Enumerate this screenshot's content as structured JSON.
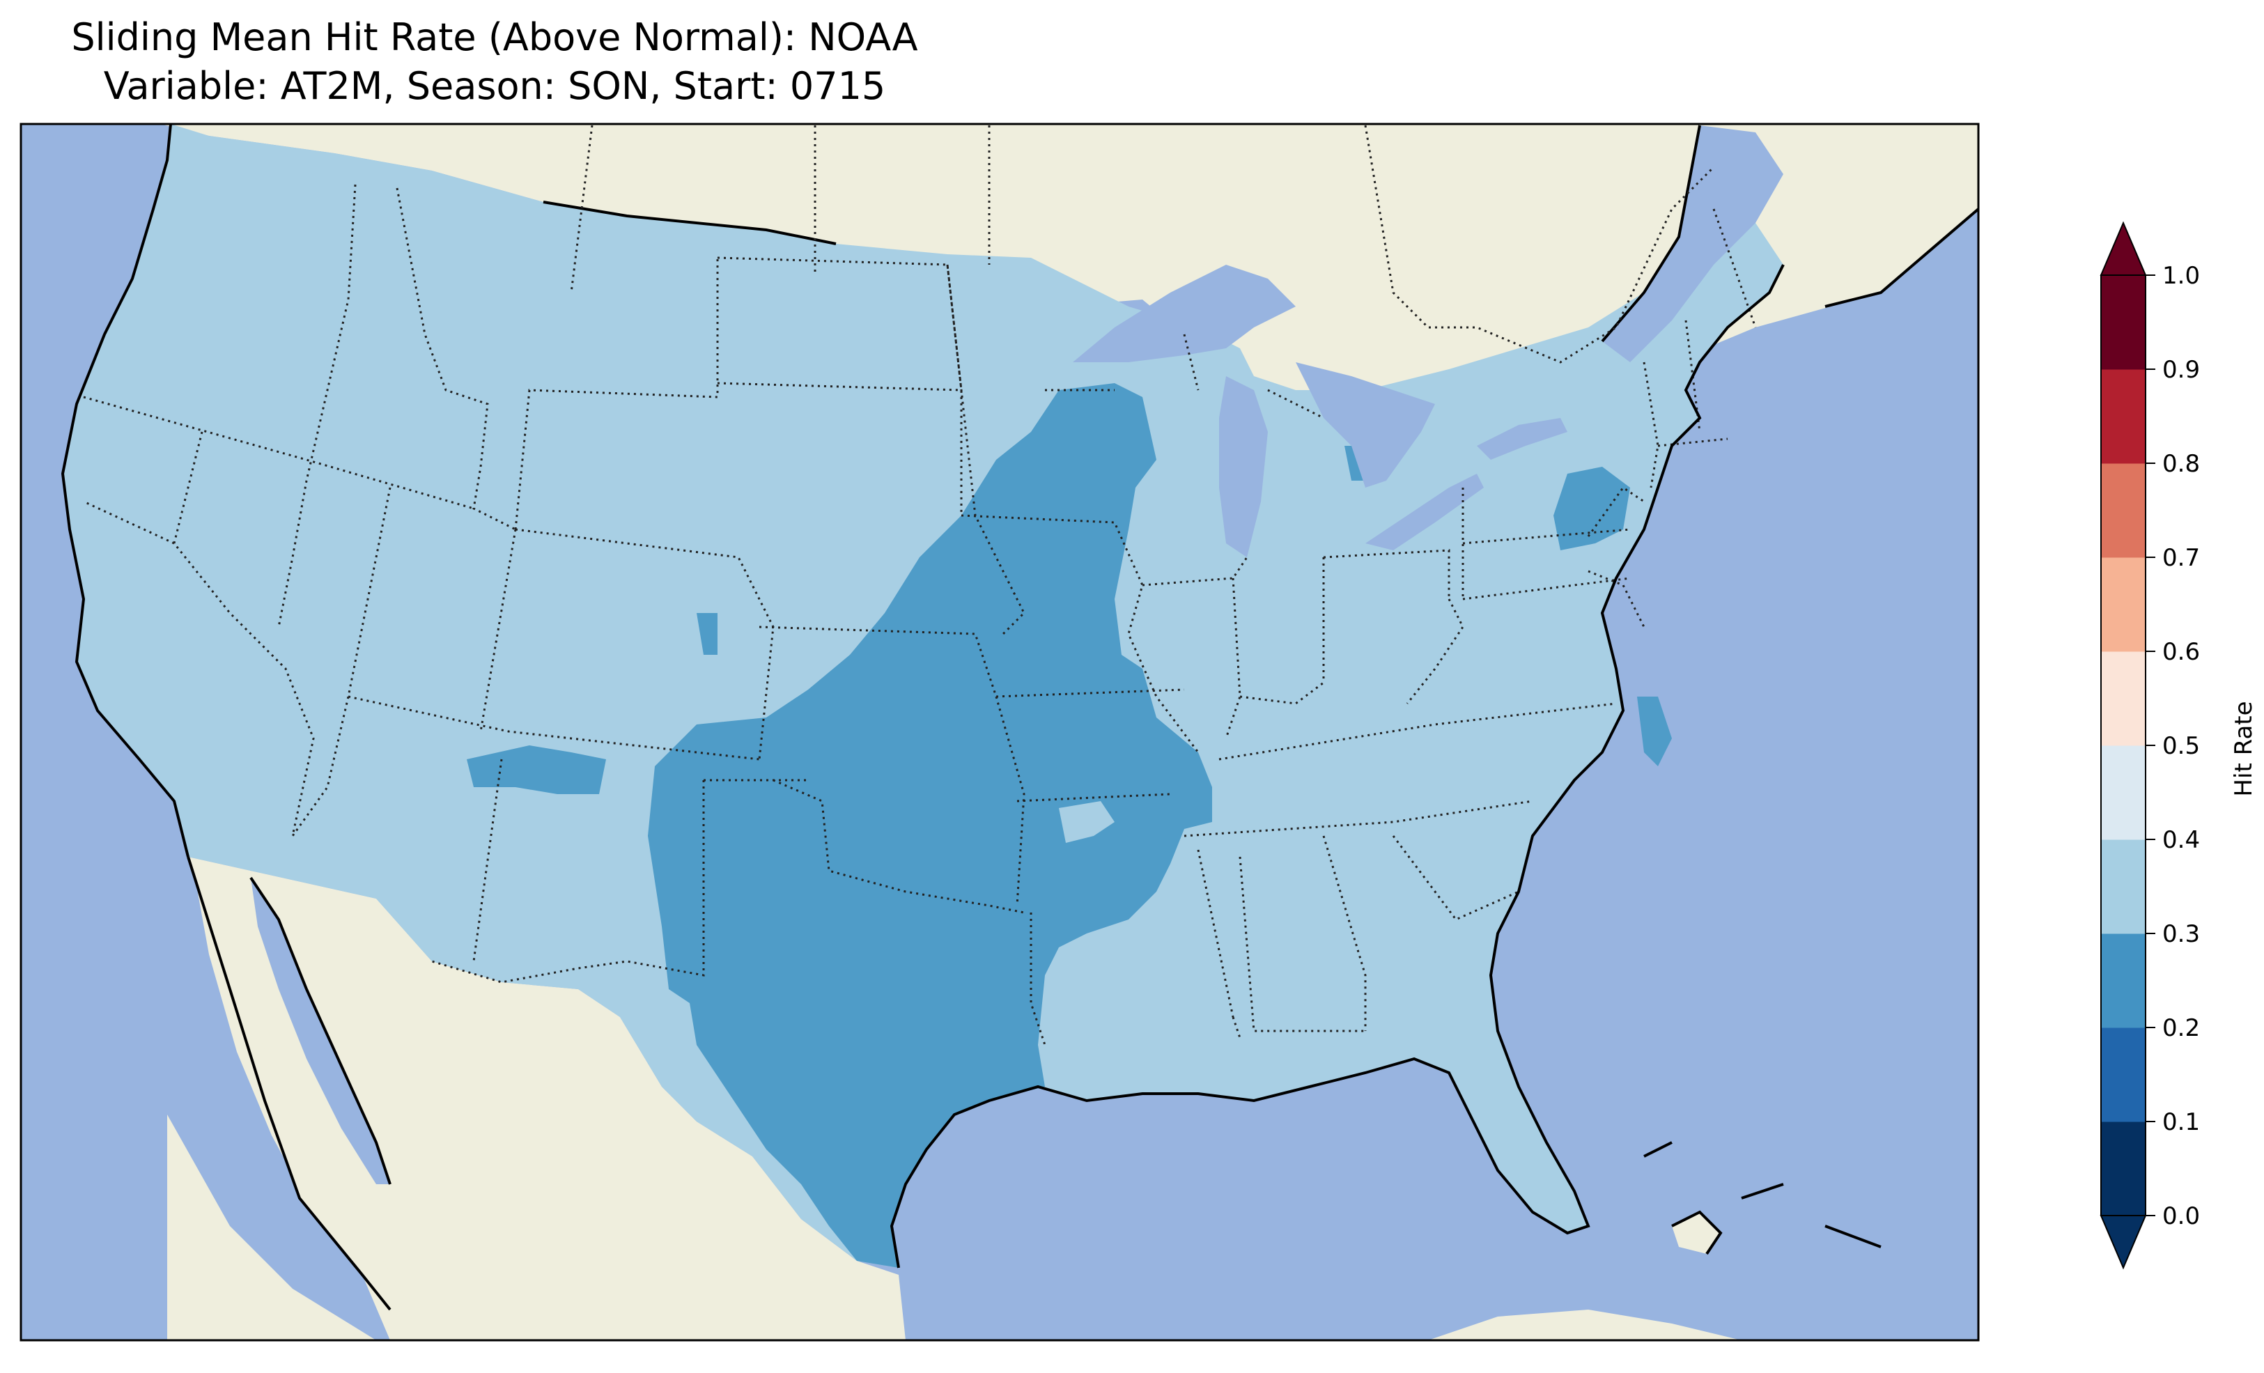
{
  "title": {
    "line1": "Sliding Mean Hit Rate (Above Normal): NOAA",
    "line2": "Variable: AT2M, Season: SON, Start: 0715"
  },
  "colorbar": {
    "label": "Hit Rate",
    "ticks": [
      "0.0",
      "0.1",
      "0.2",
      "0.3",
      "0.4",
      "0.5",
      "0.6",
      "0.7",
      "0.8",
      "0.9",
      "1.0"
    ],
    "colors": [
      "#053061",
      "#2166ac",
      "#4393c3",
      "#a6cfe3",
      "#dce9f2",
      "#fbe4d8",
      "#f6b394",
      "#de755f",
      "#b2202f",
      "#67001f"
    ],
    "extend": "both"
  },
  "map": {
    "ocean_color": "#98b4e0",
    "land_color": "#efeedd",
    "low_class_color": "#4f9cc8",
    "mid_class_color": "#a8cfe4",
    "lake_color": "#98b4e0"
  }
}
